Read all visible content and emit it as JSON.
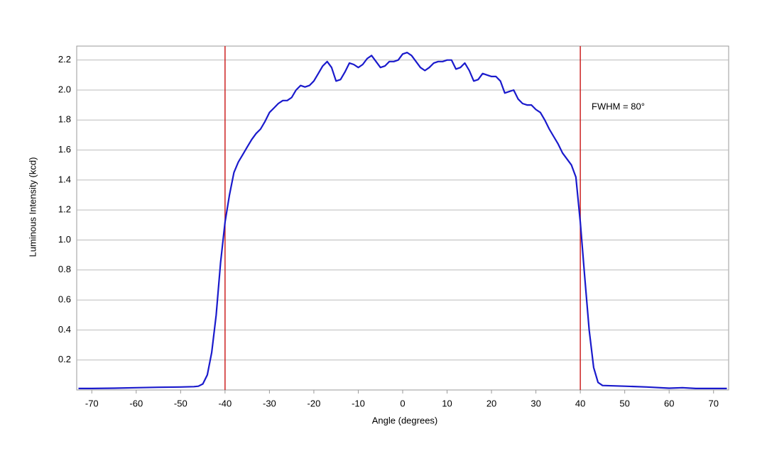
{
  "chart_data": {
    "type": "line",
    "xlabel": "Angle (degrees)",
    "ylabel": "Luminous Intensity (kcd)",
    "annotation": "FWHM = 80°",
    "vlines": [
      -40,
      40
    ],
    "vline_color": "#cc2222",
    "series": [
      {
        "name": "Luminous Intensity",
        "color": "#1a1acc",
        "x": [
          -73,
          -70,
          -65,
          -60,
          -55,
          -50,
          -47,
          -46,
          -45,
          -44,
          -43,
          -42,
          -41,
          -40,
          -39,
          -38,
          -37,
          -36,
          -35,
          -34,
          -33,
          -32,
          -31,
          -30,
          -29,
          -28,
          -27,
          -26,
          -25,
          -24,
          -23,
          -22,
          -21,
          -20,
          -19,
          -18,
          -17,
          -16,
          -15,
          -14,
          -13,
          -12,
          -11,
          -10,
          -9,
          -8,
          -7,
          -6,
          -5,
          -4,
          -3,
          -2,
          -1,
          0,
          1,
          2,
          3,
          4,
          5,
          6,
          7,
          8,
          9,
          10,
          11,
          12,
          13,
          14,
          15,
          16,
          17,
          18,
          19,
          20,
          21,
          22,
          23,
          24,
          25,
          26,
          27,
          28,
          29,
          30,
          31,
          32,
          33,
          34,
          35,
          36,
          37,
          38,
          39,
          40,
          41,
          42,
          43,
          44,
          45,
          50,
          55,
          60,
          63,
          66,
          70,
          73
        ],
        "values": [
          0.01,
          0.01,
          0.012,
          0.015,
          0.018,
          0.02,
          0.022,
          0.025,
          0.04,
          0.1,
          0.25,
          0.5,
          0.85,
          1.12,
          1.3,
          1.45,
          1.52,
          1.57,
          1.62,
          1.67,
          1.71,
          1.74,
          1.79,
          1.85,
          1.88,
          1.91,
          1.93,
          1.93,
          1.95,
          2.0,
          2.03,
          2.02,
          2.03,
          2.06,
          2.11,
          2.16,
          2.19,
          2.15,
          2.06,
          2.07,
          2.12,
          2.18,
          2.17,
          2.15,
          2.17,
          2.21,
          2.23,
          2.19,
          2.15,
          2.16,
          2.19,
          2.19,
          2.2,
          2.24,
          2.25,
          2.23,
          2.19,
          2.15,
          2.13,
          2.15,
          2.18,
          2.19,
          2.19,
          2.2,
          2.2,
          2.14,
          2.15,
          2.18,
          2.13,
          2.06,
          2.07,
          2.11,
          2.1,
          2.09,
          2.09,
          2.06,
          1.98,
          1.99,
          2.0,
          1.94,
          1.91,
          1.9,
          1.9,
          1.87,
          1.85,
          1.8,
          1.74,
          1.69,
          1.64,
          1.58,
          1.54,
          1.5,
          1.42,
          1.12,
          0.75,
          0.4,
          0.15,
          0.05,
          0.03,
          0.025,
          0.02,
          0.012,
          0.015,
          0.01,
          0.01,
          0.01
        ]
      }
    ],
    "xlim": [
      -73.4,
      73.4
    ],
    "xticks": [
      -70,
      -60,
      -50,
      -40,
      -30,
      -20,
      -10,
      0,
      10,
      20,
      30,
      40,
      50,
      60,
      70
    ],
    "ylim": [
      0,
      2.293
    ],
    "yticks": [
      0.2,
      0.4,
      0.6,
      0.8,
      {
        "value": 1,
        "label": "1.0"
      },
      1.2,
      1.4,
      1.6,
      1.8,
      {
        "value": 2,
        "label": "2.0"
      },
      2.2
    ],
    "grid": true
  }
}
